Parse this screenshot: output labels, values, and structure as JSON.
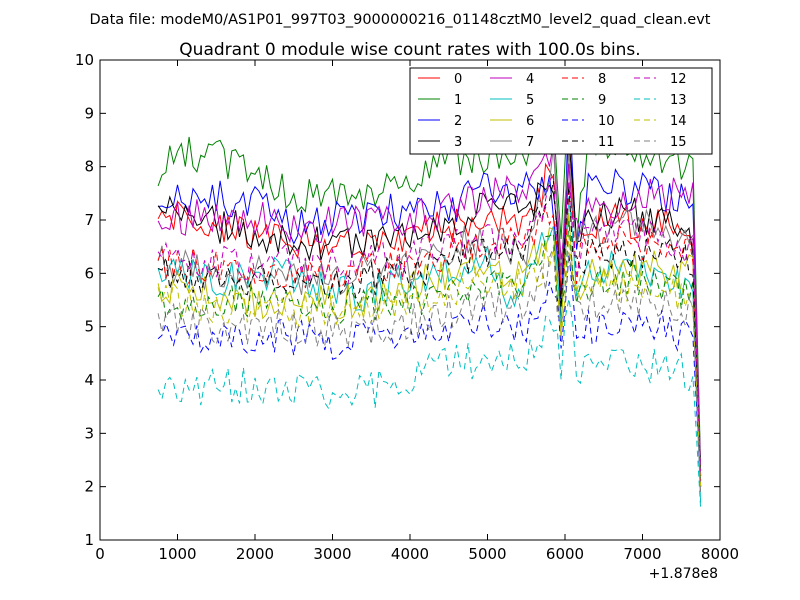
{
  "chart_data": {
    "type": "line",
    "suptitle": "Data file: modeM0/AS1P01_997T03_9000000216_01148cztM0_level2_quad_clean.evt",
    "title": "Quadrant 0 module wise count rates with 100.0s bins.",
    "xlabel": "",
    "ylabel": "",
    "x_offset_label": "+1.878e8",
    "xlim": [
      0,
      8000
    ],
    "ylim": [
      1,
      10
    ],
    "xticks": [
      0,
      1000,
      2000,
      3000,
      4000,
      5000,
      6000,
      7000,
      8000
    ],
    "yticks": [
      1,
      2,
      3,
      4,
      5,
      6,
      7,
      8,
      9,
      10
    ],
    "grid": false,
    "legend_position": "top-right",
    "x_start": 750,
    "x_step": 100,
    "series": [
      {
        "name": "0",
        "color": "#ff0000",
        "dash": "solid",
        "anchors": [
          [
            750,
            7.1
          ],
          [
            1500,
            6.8
          ],
          [
            2500,
            6.6
          ],
          [
            3500,
            6.5
          ],
          [
            4500,
            6.9
          ],
          [
            5000,
            7.1
          ],
          [
            5500,
            7.0
          ],
          [
            5850,
            8.0
          ],
          [
            5950,
            5.8
          ],
          [
            6050,
            8.3
          ],
          [
            6150,
            6.2
          ],
          [
            6300,
            7.0
          ],
          [
            7000,
            7.0
          ],
          [
            7650,
            6.8
          ],
          [
            7750,
            2.2
          ]
        ]
      },
      {
        "name": "1",
        "color": "#008000",
        "dash": "solid",
        "anchors": [
          [
            750,
            7.7
          ],
          [
            1000,
            8.3
          ],
          [
            1500,
            8.2
          ],
          [
            2000,
            7.9
          ],
          [
            2500,
            7.4
          ],
          [
            3000,
            7.5
          ],
          [
            3500,
            7.4
          ],
          [
            4000,
            7.8
          ],
          [
            4500,
            8.1
          ],
          [
            5000,
            8.2
          ],
          [
            5500,
            8.2
          ],
          [
            5850,
            8.8
          ],
          [
            5950,
            6.3
          ],
          [
            6050,
            9.2
          ],
          [
            6150,
            6.8
          ],
          [
            6300,
            8.3
          ],
          [
            7000,
            8.2
          ],
          [
            7650,
            8.0
          ],
          [
            7750,
            2.4
          ]
        ]
      },
      {
        "name": "2",
        "color": "#0000ff",
        "dash": "solid",
        "anchors": [
          [
            750,
            7.3
          ],
          [
            1500,
            7.4
          ],
          [
            2000,
            7.3
          ],
          [
            2500,
            6.9
          ],
          [
            3000,
            7.0
          ],
          [
            3500,
            7.1
          ],
          [
            4000,
            7.2
          ],
          [
            4500,
            7.2
          ],
          [
            5000,
            7.6
          ],
          [
            5500,
            7.6
          ],
          [
            5850,
            7.5
          ],
          [
            5950,
            5.5
          ],
          [
            6050,
            9.1
          ],
          [
            6150,
            6.5
          ],
          [
            6300,
            7.6
          ],
          [
            7000,
            7.6
          ],
          [
            7650,
            7.4
          ],
          [
            7750,
            2.1
          ]
        ]
      },
      {
        "name": "3",
        "color": "#000000",
        "dash": "solid",
        "anchors": [
          [
            750,
            7.3
          ],
          [
            1500,
            6.9
          ],
          [
            2000,
            6.8
          ],
          [
            2500,
            6.6
          ],
          [
            3000,
            6.5
          ],
          [
            3500,
            6.6
          ],
          [
            4000,
            6.7
          ],
          [
            4500,
            6.9
          ],
          [
            5000,
            7.3
          ],
          [
            5500,
            7.2
          ],
          [
            5850,
            7.6
          ],
          [
            5950,
            5.3
          ],
          [
            6050,
            8.2
          ],
          [
            6150,
            6.4
          ],
          [
            6300,
            7.0
          ],
          [
            7000,
            7.1
          ],
          [
            7650,
            6.7
          ],
          [
            7750,
            2.0
          ]
        ]
      },
      {
        "name": "4",
        "color": "#bf00bf",
        "dash": "solid",
        "anchors": [
          [
            750,
            7.0
          ],
          [
            1500,
            7.1
          ],
          [
            2000,
            7.1
          ],
          [
            2500,
            6.9
          ],
          [
            3000,
            6.9
          ],
          [
            3500,
            7.0
          ],
          [
            4000,
            7.0
          ],
          [
            4500,
            7.2
          ],
          [
            5000,
            7.5
          ],
          [
            5500,
            7.6
          ],
          [
            5850,
            8.2
          ],
          [
            5950,
            6.0
          ],
          [
            6050,
            7.8
          ],
          [
            6150,
            6.6
          ],
          [
            6300,
            7.3
          ],
          [
            7000,
            7.4
          ],
          [
            7650,
            7.6
          ],
          [
            7750,
            2.3
          ]
        ]
      },
      {
        "name": "5",
        "color": "#00bfbf",
        "dash": "solid",
        "anchors": [
          [
            750,
            6.1
          ],
          [
            1500,
            5.9
          ],
          [
            2000,
            6.0
          ],
          [
            2500,
            5.9
          ],
          [
            3000,
            5.6
          ],
          [
            3500,
            5.6
          ],
          [
            4000,
            5.9
          ],
          [
            4500,
            6.0
          ],
          [
            5000,
            6.2
          ],
          [
            5400,
            5.4
          ],
          [
            5600,
            6.3
          ],
          [
            5850,
            7.2
          ],
          [
            5950,
            5.1
          ],
          [
            6050,
            7.2
          ],
          [
            6150,
            5.8
          ],
          [
            6300,
            6.2
          ],
          [
            7000,
            6.0
          ],
          [
            7650,
            5.8
          ],
          [
            7750,
            1.7
          ]
        ]
      },
      {
        "name": "6",
        "color": "#bfbf00",
        "dash": "solid",
        "anchors": [
          [
            750,
            5.8
          ],
          [
            1500,
            5.6
          ],
          [
            2000,
            5.5
          ],
          [
            2500,
            5.4
          ],
          [
            3000,
            5.5
          ],
          [
            3500,
            5.5
          ],
          [
            4000,
            5.8
          ],
          [
            4500,
            6.0
          ],
          [
            5000,
            6.0
          ],
          [
            5500,
            6.1
          ],
          [
            5850,
            6.8
          ],
          [
            5950,
            5.3
          ],
          [
            6050,
            6.9
          ],
          [
            6150,
            5.7
          ],
          [
            6300,
            6.0
          ],
          [
            7000,
            6.1
          ],
          [
            7650,
            6.0
          ],
          [
            7750,
            2.0
          ]
        ]
      },
      {
        "name": "7",
        "color": "#808080",
        "dash": "solid",
        "anchors": [
          [
            750,
            6.2
          ],
          [
            1500,
            6.0
          ],
          [
            2000,
            6.0
          ],
          [
            2500,
            5.9
          ],
          [
            3000,
            5.9
          ],
          [
            3500,
            6.0
          ],
          [
            4000,
            6.1
          ],
          [
            4500,
            6.5
          ],
          [
            5000,
            6.6
          ],
          [
            5500,
            6.4
          ],
          [
            5850,
            8.0
          ],
          [
            5950,
            5.8
          ],
          [
            6050,
            8.1
          ],
          [
            6150,
            6.3
          ],
          [
            6300,
            6.8
          ],
          [
            7000,
            6.9
          ],
          [
            7650,
            6.6
          ],
          [
            7750,
            2.2
          ]
        ]
      },
      {
        "name": "8",
        "color": "#ff0000",
        "dash": "dashed",
        "anchors": [
          [
            750,
            6.2
          ],
          [
            1500,
            6.1
          ],
          [
            2000,
            6.1
          ],
          [
            2500,
            6.0
          ],
          [
            3000,
            6.0
          ],
          [
            3500,
            6.1
          ],
          [
            4000,
            6.2
          ],
          [
            4500,
            6.4
          ],
          [
            5000,
            6.6
          ],
          [
            5500,
            6.6
          ],
          [
            5850,
            7.3
          ],
          [
            5950,
            5.7
          ],
          [
            6050,
            7.4
          ],
          [
            6150,
            6.2
          ],
          [
            6300,
            6.6
          ],
          [
            7000,
            6.6
          ],
          [
            7650,
            6.4
          ],
          [
            7750,
            2.1
          ]
        ]
      },
      {
        "name": "9",
        "color": "#008000",
        "dash": "dashed",
        "anchors": [
          [
            750,
            5.5
          ],
          [
            1500,
            5.4
          ],
          [
            2000,
            5.5
          ],
          [
            2500,
            5.4
          ],
          [
            3000,
            5.3
          ],
          [
            3500,
            5.4
          ],
          [
            4000,
            5.5
          ],
          [
            4500,
            5.6
          ],
          [
            5000,
            5.8
          ],
          [
            5500,
            5.9
          ],
          [
            5850,
            6.6
          ],
          [
            5950,
            5.0
          ],
          [
            6050,
            6.8
          ],
          [
            6150,
            5.6
          ],
          [
            6300,
            5.8
          ],
          [
            7000,
            5.9
          ],
          [
            7650,
            5.6
          ],
          [
            7750,
            2.0
          ]
        ]
      },
      {
        "name": "10",
        "color": "#0000ff",
        "dash": "dashed",
        "anchors": [
          [
            750,
            4.7
          ],
          [
            1500,
            4.8
          ],
          [
            2000,
            4.8
          ],
          [
            2500,
            4.8
          ],
          [
            3000,
            4.7
          ],
          [
            3500,
            4.8
          ],
          [
            4000,
            4.9
          ],
          [
            4500,
            5.0
          ],
          [
            5000,
            5.1
          ],
          [
            5500,
            5.0
          ],
          [
            5850,
            6.0
          ],
          [
            5950,
            4.5
          ],
          [
            6050,
            6.2
          ],
          [
            6150,
            4.7
          ],
          [
            6300,
            5.0
          ],
          [
            7000,
            5.1
          ],
          [
            7650,
            4.8
          ],
          [
            7750,
            2.0
          ]
        ]
      },
      {
        "name": "11",
        "color": "#000000",
        "dash": "dashed",
        "anchors": [
          [
            750,
            6.0
          ],
          [
            1500,
            5.9
          ],
          [
            2000,
            5.9
          ],
          [
            2500,
            5.8
          ],
          [
            3000,
            5.8
          ],
          [
            3500,
            5.9
          ],
          [
            4000,
            6.0
          ],
          [
            4500,
            6.2
          ],
          [
            5000,
            6.4
          ],
          [
            5500,
            6.4
          ],
          [
            5850,
            7.8
          ],
          [
            5950,
            5.6
          ],
          [
            6050,
            7.5
          ],
          [
            6150,
            6.0
          ],
          [
            6300,
            6.4
          ],
          [
            7000,
            6.4
          ],
          [
            7650,
            6.2
          ],
          [
            7750,
            2.2
          ]
        ]
      },
      {
        "name": "12",
        "color": "#bf00bf",
        "dash": "dashed",
        "anchors": [
          [
            750,
            6.3
          ],
          [
            1500,
            6.2
          ],
          [
            2000,
            6.2
          ],
          [
            2500,
            6.2
          ],
          [
            3000,
            6.1
          ],
          [
            3500,
            6.2
          ],
          [
            4000,
            6.3
          ],
          [
            4500,
            6.5
          ],
          [
            5000,
            6.7
          ],
          [
            5500,
            6.7
          ],
          [
            5850,
            7.6
          ],
          [
            5950,
            5.8
          ],
          [
            6050,
            7.6
          ],
          [
            6150,
            6.3
          ],
          [
            6300,
            6.7
          ],
          [
            7000,
            6.8
          ],
          [
            7650,
            6.5
          ],
          [
            7750,
            2.2
          ]
        ]
      },
      {
        "name": "13",
        "color": "#00bfbf",
        "dash": "dashed",
        "anchors": [
          [
            750,
            3.7
          ],
          [
            1500,
            3.9
          ],
          [
            2000,
            3.9
          ],
          [
            2500,
            3.8
          ],
          [
            3000,
            3.8
          ],
          [
            3500,
            3.8
          ],
          [
            4000,
            4.0
          ],
          [
            4500,
            4.3
          ],
          [
            5000,
            4.4
          ],
          [
            5500,
            4.5
          ],
          [
            5850,
            5.2
          ],
          [
            5950,
            4.0
          ],
          [
            6050,
            5.4
          ],
          [
            6150,
            4.1
          ],
          [
            6300,
            4.4
          ],
          [
            7000,
            4.3
          ],
          [
            7650,
            4.1
          ],
          [
            7750,
            1.6
          ]
        ]
      },
      {
        "name": "14",
        "color": "#bfbf00",
        "dash": "dashed",
        "anchors": [
          [
            750,
            5.6
          ],
          [
            1500,
            5.4
          ],
          [
            2000,
            5.4
          ],
          [
            2500,
            5.3
          ],
          [
            3000,
            5.3
          ],
          [
            3500,
            5.4
          ],
          [
            4000,
            5.5
          ],
          [
            4500,
            5.7
          ],
          [
            5000,
            5.8
          ],
          [
            5500,
            5.8
          ],
          [
            5850,
            6.4
          ],
          [
            5950,
            5.1
          ],
          [
            6050,
            6.6
          ],
          [
            6150,
            5.5
          ],
          [
            6300,
            5.8
          ],
          [
            7000,
            5.8
          ],
          [
            7650,
            5.6
          ],
          [
            7750,
            2.0
          ]
        ]
      },
      {
        "name": "15",
        "color": "#808080",
        "dash": "dashed",
        "anchors": [
          [
            750,
            5.1
          ],
          [
            1500,
            5.0
          ],
          [
            2000,
            5.0
          ],
          [
            2500,
            5.0
          ],
          [
            3000,
            4.9
          ],
          [
            3500,
            5.0
          ],
          [
            4000,
            5.1
          ],
          [
            4500,
            5.3
          ],
          [
            5000,
            5.4
          ],
          [
            5500,
            5.4
          ],
          [
            5850,
            6.1
          ],
          [
            5950,
            4.8
          ],
          [
            6050,
            6.3
          ],
          [
            6150,
            5.1
          ],
          [
            6300,
            5.4
          ],
          [
            7000,
            5.5
          ],
          [
            7650,
            5.2
          ],
          [
            7750,
            1.9
          ]
        ]
      }
    ]
  }
}
